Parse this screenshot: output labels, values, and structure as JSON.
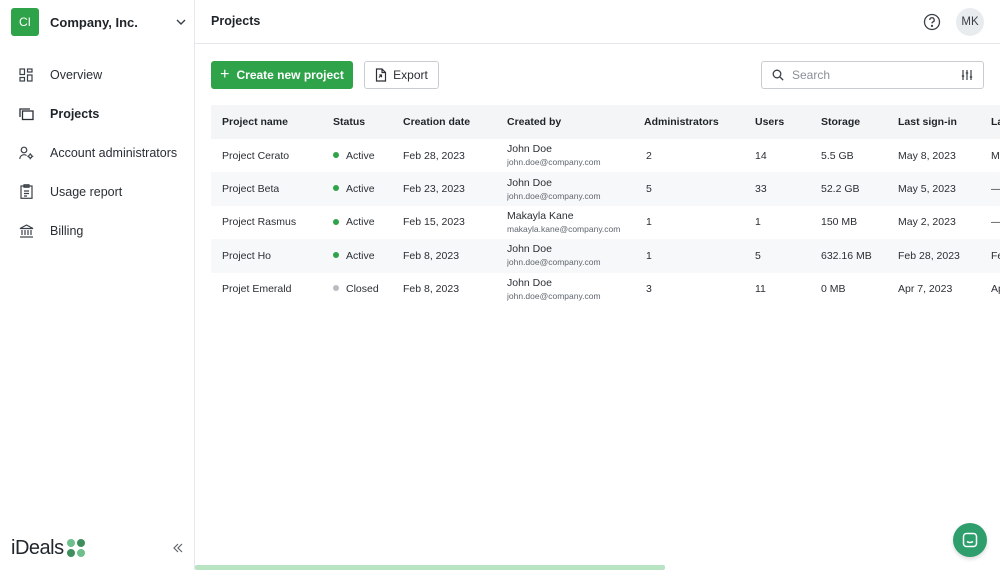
{
  "org": {
    "initials": "CI",
    "name": "Company, Inc."
  },
  "nav": [
    {
      "label": "Overview",
      "icon": "grid-icon"
    },
    {
      "label": "Projects",
      "icon": "folders-icon",
      "active": true
    },
    {
      "label": "Account administrators",
      "icon": "user-gear-icon"
    },
    {
      "label": "Usage report",
      "icon": "clipboard-icon"
    },
    {
      "label": "Billing",
      "icon": "bank-icon"
    }
  ],
  "logo": {
    "text": "iDeals"
  },
  "header": {
    "title": "Projects",
    "avatar": "MK"
  },
  "toolbar": {
    "create_label": "Create new project",
    "export_label": "Export",
    "search_placeholder": "Search"
  },
  "table": {
    "columns": [
      "Project name",
      "Status",
      "Creation date",
      "Created by",
      "Administrators",
      "Users",
      "Storage",
      "Last sign-in",
      "La"
    ],
    "rows": [
      {
        "name": "Project Cerato",
        "status": "Active",
        "created": "Feb 28, 2023",
        "creator_name": "John Doe",
        "creator_email": "john.doe@company.com",
        "admins": "2",
        "users": "14",
        "storage": "5.5 GB",
        "last_signin": "May 8, 2023",
        "extra": "M"
      },
      {
        "name": "Project Beta",
        "status": "Active",
        "created": "Feb 23, 2023",
        "creator_name": "John Doe",
        "creator_email": "john.doe@company.com",
        "admins": "5",
        "users": "33",
        "storage": "52.2 GB",
        "last_signin": "May 5, 2023",
        "extra": "—"
      },
      {
        "name": "Project Rasmus",
        "status": "Active",
        "created": "Feb 15, 2023",
        "creator_name": "Makayla Kane",
        "creator_email": "makayla.kane@company.com",
        "admins": "1",
        "users": "1",
        "storage": "150 MB",
        "last_signin": "May 2, 2023",
        "extra": "—"
      },
      {
        "name": "Project Ho",
        "status": "Active",
        "created": "Feb 8, 2023",
        "creator_name": "John Doe",
        "creator_email": "john.doe@company.com",
        "admins": "1",
        "users": "5",
        "storage": "632.16 MB",
        "last_signin": "Feb 28, 2023",
        "extra": "Fe"
      },
      {
        "name": "Projet Emerald",
        "status": "Closed",
        "created": "Feb 8, 2023",
        "creator_name": "John Doe",
        "creator_email": "john.doe@company.com",
        "admins": "3",
        "users": "11",
        "storage": "0 MB",
        "last_signin": "Apr 7, 2023",
        "extra": "Ap"
      }
    ]
  },
  "colors": {
    "accent": "#2fa34a",
    "active": "#2fa34a",
    "closed": "#b8bdc3",
    "chat": "#2f9e6d"
  }
}
